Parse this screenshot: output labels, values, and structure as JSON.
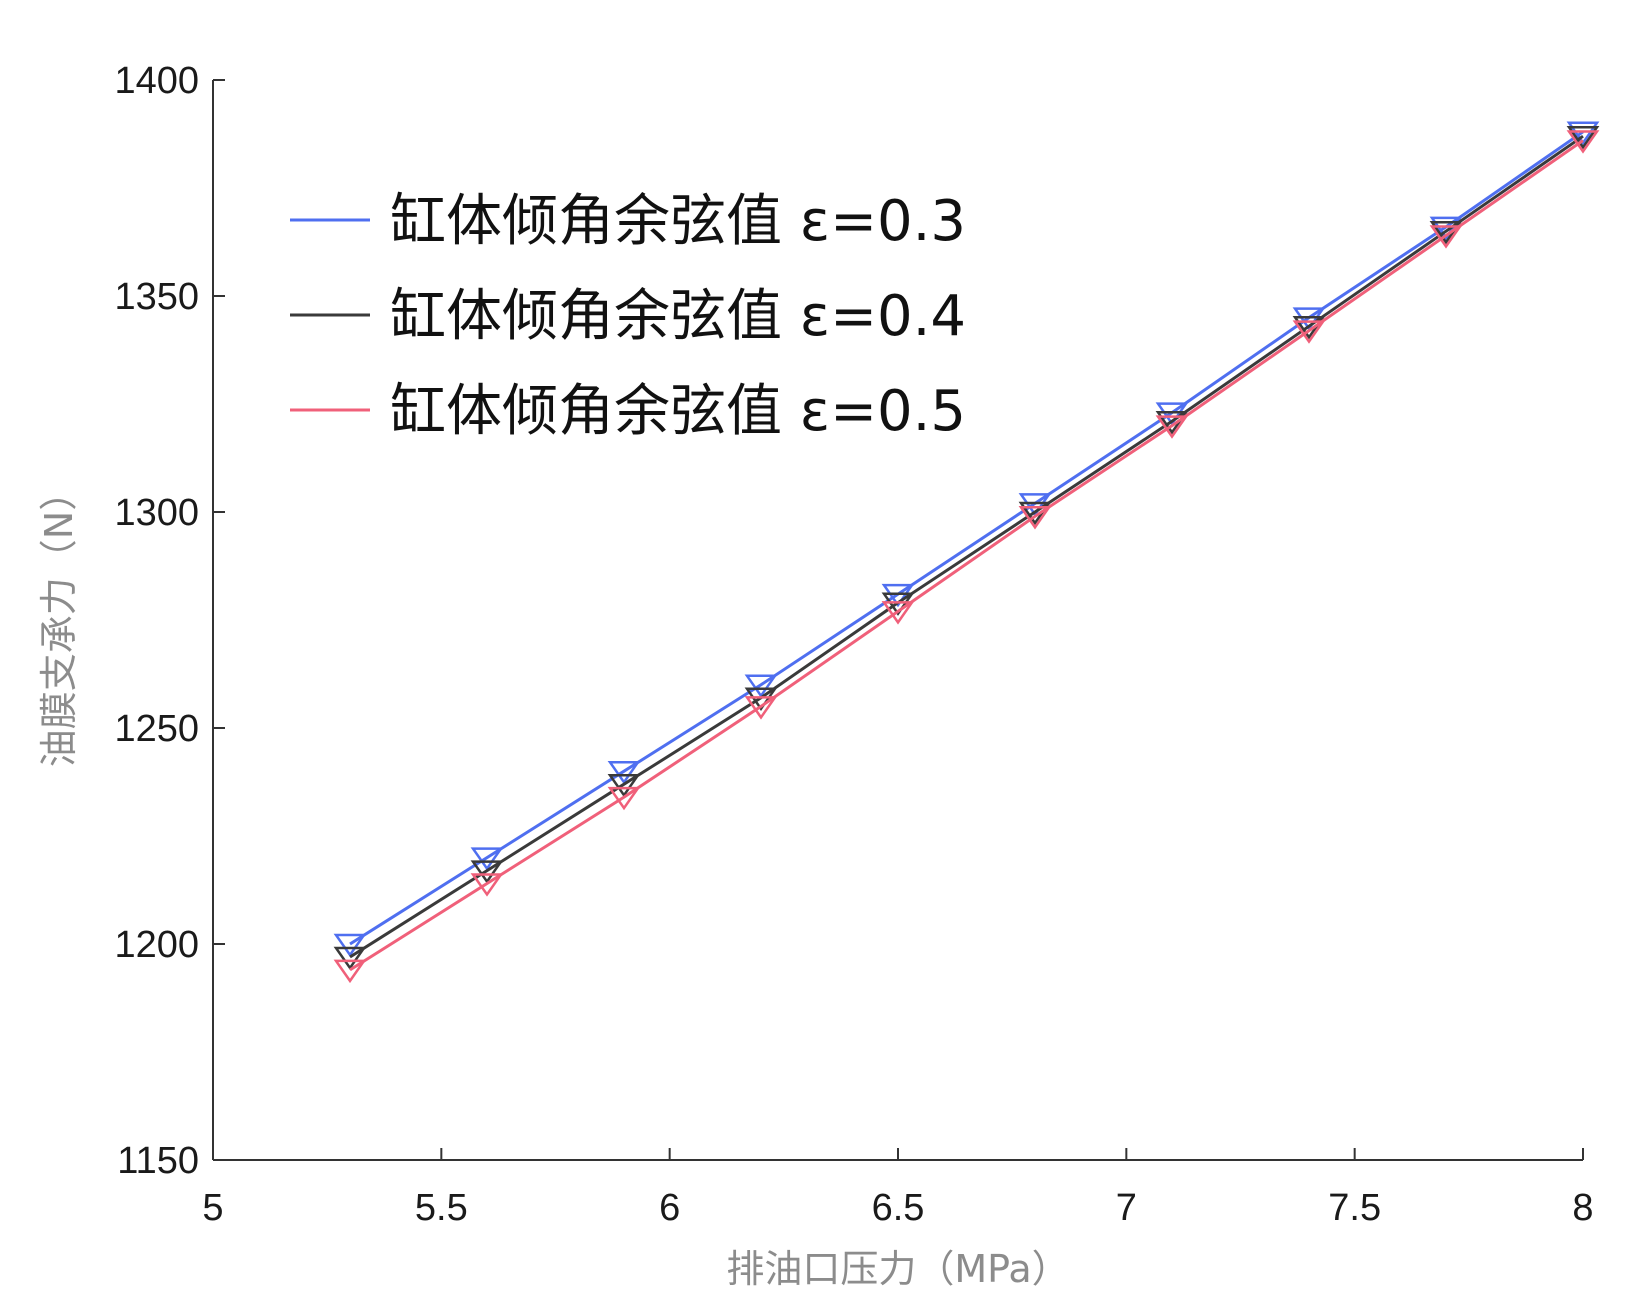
{
  "chart_data": {
    "type": "line",
    "title": "",
    "xlabel": "排油口压力（MPa）",
    "ylabel": "油膜支承力（N）",
    "xlim": [
      5,
      8
    ],
    "ylim": [
      1150,
      1400
    ],
    "xticks": [
      "5",
      "5.5",
      "6",
      "6.5",
      "7",
      "7.5",
      "8"
    ],
    "yticks": [
      "1150",
      "1200",
      "1250",
      "1300",
      "1350",
      "1400"
    ],
    "grid": false,
    "legend_position": "top-left",
    "x": [
      5.3,
      5.6,
      5.9,
      6.2,
      6.5,
      6.8,
      7.1,
      7.4,
      7.7,
      8.0
    ],
    "series": [
      {
        "name": "缸体倾角余弦值 ε=0.3",
        "color": "#4f6ff0",
        "marker": "down-triangle",
        "values": [
          1200,
          1220,
          1240,
          1260,
          1281,
          1302,
          1323,
          1345,
          1366,
          1388
        ]
      },
      {
        "name": "缸体倾角余弦值 ε=0.4",
        "color": "#3a3a3a",
        "marker": "down-triangle",
        "values": [
          1197,
          1217,
          1237,
          1257,
          1279,
          1300,
          1321,
          1343,
          1365,
          1387
        ]
      },
      {
        "name": "缸体倾角余弦值 ε=0.5",
        "color": "#f0607a",
        "marker": "down-triangle",
        "values": [
          1194,
          1214,
          1234,
          1255,
          1277,
          1299,
          1320,
          1342,
          1364,
          1386
        ]
      }
    ]
  }
}
